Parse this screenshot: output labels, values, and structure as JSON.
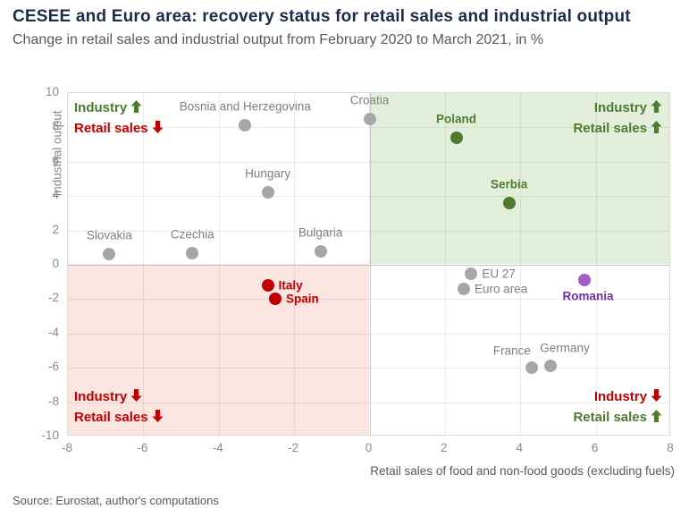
{
  "header": {
    "title": "CESEE and Euro area: recovery status for retail sales and industrial output",
    "subtitle": "Change in retail sales and industrial output from February 2020 to March 2021, in %"
  },
  "source": "Source: Eurostat, author's computations",
  "colors": {
    "title": "#1c2b4a",
    "subtitle": "#595959",
    "green": "#4e7b30",
    "red": "#c00000",
    "purple_dot": "#a35ec9",
    "purple_label": "#7030a0",
    "gray_dot": "#a6a6a6",
    "gray_label": "#7f7f7f",
    "quadrant_green_bg": "#e3efdb",
    "quadrant_pink_bg": "#fbe5e1"
  },
  "chart_data": {
    "type": "scatter",
    "title": "CESEE and Euro area: recovery status for retail sales and industrial output",
    "subtitle": "Change in retail sales and industrial output from February 2020 to March 2021, in %",
    "xlabel": "Retail sales of food and non-food goods (excluding fuels)",
    "ylabel": "Industrial output",
    "xlim": [
      -8,
      8
    ],
    "ylim": [
      -10,
      10
    ],
    "x_ticks": [
      -8,
      -6,
      -4,
      -2,
      0,
      2,
      4,
      6,
      8
    ],
    "y_ticks": [
      10,
      8,
      6,
      4,
      2,
      0,
      -2,
      -4,
      -6,
      -8,
      -10
    ],
    "grid": true,
    "legend_position": "quadrant-corners",
    "points": [
      {
        "label": "Bosnia and Herzegovina",
        "x": -3.3,
        "y": 8.1,
        "color": "gray",
        "bold": false,
        "label_pos": "above"
      },
      {
        "label": "Croatia",
        "x": 0.0,
        "y": 8.5,
        "color": "gray",
        "bold": false,
        "label_pos": "above"
      },
      {
        "label": "Poland",
        "x": 2.3,
        "y": 7.4,
        "color": "green",
        "bold": true,
        "label_pos": "above"
      },
      {
        "label": "Hungary",
        "x": -2.7,
        "y": 4.2,
        "color": "gray",
        "bold": false,
        "label_pos": "above"
      },
      {
        "label": "Serbia",
        "x": 3.7,
        "y": 3.6,
        "color": "green",
        "bold": true,
        "label_pos": "above"
      },
      {
        "label": "Slovakia",
        "x": -6.9,
        "y": 0.6,
        "color": "gray",
        "bold": false,
        "label_pos": "above"
      },
      {
        "label": "Czechia",
        "x": -4.7,
        "y": 0.7,
        "color": "gray",
        "bold": false,
        "label_pos": "above"
      },
      {
        "label": "Bulgaria",
        "x": -1.3,
        "y": 0.8,
        "color": "gray",
        "bold": false,
        "label_pos": "above"
      },
      {
        "label": "EU 27",
        "x": 2.7,
        "y": -0.5,
        "color": "gray",
        "bold": false,
        "label_pos": "right"
      },
      {
        "label": "Euro area",
        "x": 2.5,
        "y": -1.4,
        "color": "gray",
        "bold": false,
        "label_pos": "right"
      },
      {
        "label": "Romania",
        "x": 5.7,
        "y": -0.9,
        "color": "purple",
        "bold": true,
        "label_pos": "below"
      },
      {
        "label": "Italy",
        "x": -2.7,
        "y": -1.2,
        "color": "red",
        "bold": true,
        "label_pos": "right"
      },
      {
        "label": "Spain",
        "x": -2.5,
        "y": -2.0,
        "color": "red",
        "bold": true,
        "label_pos": "right"
      },
      {
        "label": "France",
        "x": 4.3,
        "y": -6.0,
        "color": "gray",
        "bold": false,
        "label_pos": "above-left"
      },
      {
        "label": "Germany",
        "x": 4.8,
        "y": -5.9,
        "color": "gray",
        "bold": false,
        "label_pos": "above-right"
      }
    ],
    "quadrant_labels": {
      "top_left": [
        {
          "text": "Industry",
          "arrow": "up",
          "color": "green"
        },
        {
          "text": "Retail sales",
          "arrow": "down",
          "color": "red"
        }
      ],
      "top_right": [
        {
          "text": "Industry",
          "arrow": "up",
          "color": "green"
        },
        {
          "text": "Retail sales",
          "arrow": "up",
          "color": "green"
        }
      ],
      "bottom_left": [
        {
          "text": "Industry",
          "arrow": "down",
          "color": "red"
        },
        {
          "text": "Retail sales",
          "arrow": "down",
          "color": "red"
        }
      ],
      "bottom_right": [
        {
          "text": "Industry",
          "arrow": "down",
          "color": "red"
        },
        {
          "text": "Retail sales",
          "arrow": "up",
          "color": "green"
        }
      ]
    }
  }
}
